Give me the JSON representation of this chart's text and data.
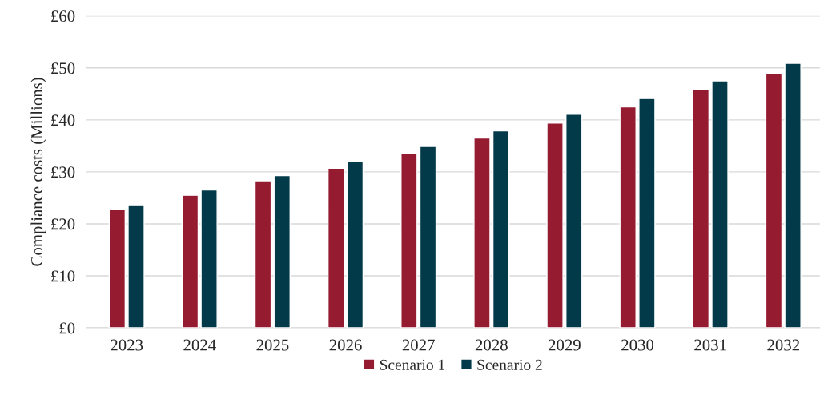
{
  "chart_data": {
    "type": "bar",
    "ylabel": "Compliance costs (Millions)",
    "categories": [
      "2023",
      "2024",
      "2025",
      "2026",
      "2027",
      "2028",
      "2029",
      "2030",
      "2031",
      "2032"
    ],
    "series": [
      {
        "name": "Scenario 1",
        "color": "#951b30",
        "values": [
          22.7,
          25.5,
          28.3,
          30.7,
          33.5,
          36.5,
          39.4,
          42.5,
          45.8,
          49.0
        ]
      },
      {
        "name": "Scenario 2",
        "color": "#023a4a",
        "values": [
          23.5,
          26.5,
          29.3,
          32.0,
          34.9,
          37.9,
          41.1,
          44.1,
          47.5,
          50.9
        ]
      }
    ],
    "ylim": [
      0,
      60
    ],
    "yticks": [
      {
        "value": 0,
        "label": "£0"
      },
      {
        "value": 10,
        "label": "£10"
      },
      {
        "value": 20,
        "label": "£20"
      },
      {
        "value": 30,
        "label": "£30"
      },
      {
        "value": 40,
        "label": "£40"
      },
      {
        "value": 50,
        "label": "£50"
      },
      {
        "value": 60,
        "label": "£60"
      }
    ],
    "grid": "y",
    "legend": "bottom"
  }
}
